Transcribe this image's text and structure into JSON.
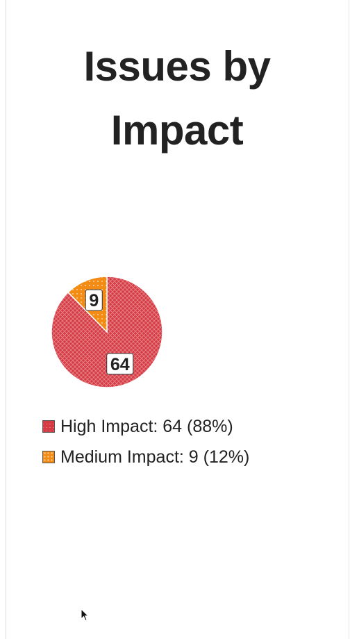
{
  "chart_data": {
    "type": "pie",
    "title": "Issues by Impact",
    "categories": [
      "High Impact",
      "Medium Impact"
    ],
    "values": [
      64,
      9
    ],
    "percentages": [
      88,
      12
    ],
    "colors": [
      "#d63a43",
      "#f28c15"
    ],
    "legend_position": "bottom-left",
    "data_labels": [
      "64",
      "9"
    ],
    "legend": [
      "High Impact: 64 (88%)",
      "Medium Impact: 9 (12%)"
    ]
  }
}
